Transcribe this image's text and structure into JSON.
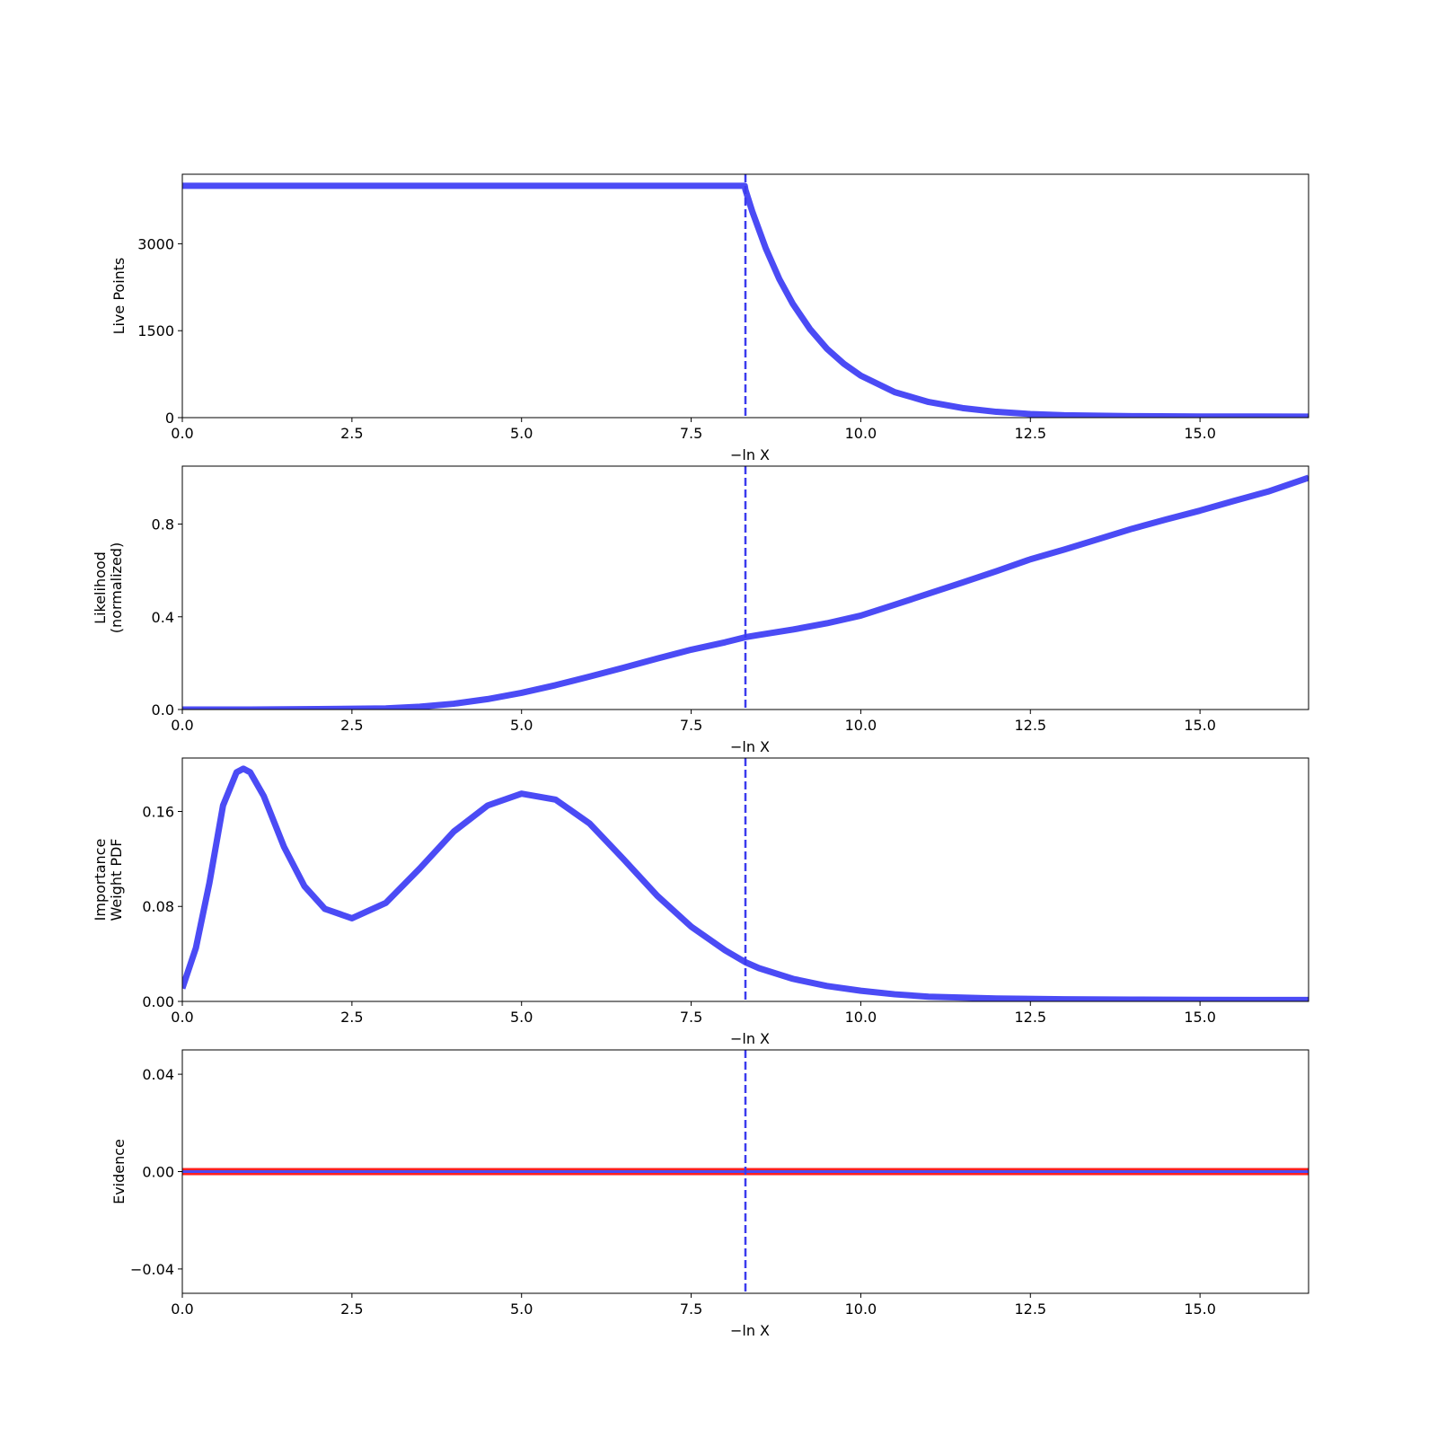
{
  "chart_data": [
    {
      "type": "line",
      "xlabel": "−ln X",
      "ylabel": [
        "Live Points"
      ],
      "xlim": [
        0,
        16.6
      ],
      "ylim": [
        0,
        4200
      ],
      "xticks": [
        0.0,
        2.5,
        5.0,
        7.5,
        10.0,
        12.5,
        15.0
      ],
      "xtick_labels": [
        "0.0",
        "2.5",
        "5.0",
        "7.5",
        "10.0",
        "12.5",
        "15.0"
      ],
      "yticks": [
        0,
        1500,
        3000
      ],
      "ytick_labels": [
        "0",
        "1500",
        "3000"
      ],
      "vline_x": 8.3,
      "grid": false,
      "series": [
        {
          "color": "#4b4bf5",
          "x": [
            0,
            8.29,
            8.3,
            8.4,
            8.6,
            8.8,
            9.0,
            9.25,
            9.5,
            9.75,
            10.0,
            10.5,
            11.0,
            11.5,
            12.0,
            12.5,
            13.0,
            14.0,
            15.0,
            16.6
          ],
          "y": [
            4000,
            4000,
            3930,
            3560,
            2920,
            2390,
            1960,
            1530,
            1190,
            930,
            725,
            440,
            270,
            165,
            100,
            62,
            40,
            25,
            20,
            18
          ]
        }
      ]
    },
    {
      "type": "line",
      "xlabel": "−ln X",
      "ylabel": [
        "Likelihood",
        "(normalized)"
      ],
      "xlim": [
        0,
        16.6
      ],
      "ylim": [
        0,
        1.05
      ],
      "xticks": [
        0.0,
        2.5,
        5.0,
        7.5,
        10.0,
        12.5,
        15.0
      ],
      "xtick_labels": [
        "0.0",
        "2.5",
        "5.0",
        "7.5",
        "10.0",
        "12.5",
        "15.0"
      ],
      "yticks": [
        0.0,
        0.4,
        0.8
      ],
      "ytick_labels": [
        "0.0",
        "0.4",
        "0.8"
      ],
      "vline_x": 8.3,
      "grid": false,
      "series": [
        {
          "color": "#4b4bf5",
          "x": [
            0,
            1.0,
            2.0,
            3.0,
            3.5,
            4.0,
            4.5,
            5.0,
            5.5,
            6.0,
            6.5,
            7.0,
            7.5,
            8.0,
            8.3,
            8.5,
            9.0,
            9.5,
            10.0,
            10.5,
            11.0,
            11.5,
            12.0,
            12.5,
            13.0,
            13.5,
            14.0,
            14.5,
            15.0,
            15.5,
            16.0,
            16.6
          ],
          "y": [
            0.0,
            0.0,
            0.002,
            0.005,
            0.012,
            0.025,
            0.045,
            0.072,
            0.105,
            0.142,
            0.18,
            0.22,
            0.258,
            0.29,
            0.312,
            0.322,
            0.345,
            0.372,
            0.405,
            0.452,
            0.5,
            0.548,
            0.597,
            0.648,
            0.69,
            0.735,
            0.78,
            0.82,
            0.858,
            0.9,
            0.94,
            1.0
          ]
        }
      ]
    },
    {
      "type": "line",
      "xlabel": "−ln X",
      "ylabel": [
        "Importance",
        "Weight PDF"
      ],
      "xlim": [
        0,
        16.6
      ],
      "ylim": [
        0,
        0.205
      ],
      "xticks": [
        0.0,
        2.5,
        5.0,
        7.5,
        10.0,
        12.5,
        15.0
      ],
      "xtick_labels": [
        "0.0",
        "2.5",
        "5.0",
        "7.5",
        "10.0",
        "12.5",
        "15.0"
      ],
      "yticks": [
        0.0,
        0.08,
        0.16
      ],
      "ytick_labels": [
        "0.00",
        "0.08",
        "0.16"
      ],
      "vline_x": 8.3,
      "grid": false,
      "series": [
        {
          "color": "#4b4bf5",
          "x": [
            0,
            0.2,
            0.4,
            0.6,
            0.8,
            0.9,
            1.0,
            1.2,
            1.5,
            1.8,
            2.1,
            2.5,
            3.0,
            3.5,
            4.0,
            4.5,
            5.0,
            5.5,
            6.0,
            6.5,
            7.0,
            7.5,
            8.0,
            8.3,
            8.5,
            9.0,
            9.5,
            10.0,
            10.5,
            11.0,
            12.0,
            13.0,
            14.0,
            15.0,
            16.6
          ],
          "y": [
            0.011,
            0.045,
            0.1,
            0.165,
            0.193,
            0.196,
            0.193,
            0.173,
            0.13,
            0.097,
            0.078,
            0.07,
            0.083,
            0.112,
            0.143,
            0.165,
            0.175,
            0.17,
            0.15,
            0.12,
            0.089,
            0.063,
            0.043,
            0.033,
            0.028,
            0.019,
            0.013,
            0.009,
            0.006,
            0.004,
            0.0025,
            0.0018,
            0.0015,
            0.0013,
            0.0012
          ]
        }
      ]
    },
    {
      "type": "line",
      "xlabel": "−ln X",
      "ylabel": [
        "Evidence"
      ],
      "xlim": [
        0,
        16.6
      ],
      "ylim": [
        -0.05,
        0.05
      ],
      "xticks": [
        0.0,
        2.5,
        5.0,
        7.5,
        10.0,
        12.5,
        15.0
      ],
      "xtick_labels": [
        "0.0",
        "2.5",
        "5.0",
        "7.5",
        "10.0",
        "12.5",
        "15.0"
      ],
      "yticks": [
        -0.04,
        0.0,
        0.04
      ],
      "ytick_labels": [
        "−0.04",
        "0.00",
        "0.04"
      ],
      "vline_x": 8.3,
      "grid": false,
      "series": [
        {
          "color": "#ff2020",
          "x": [
            0,
            16.6
          ],
          "y": [
            0,
            0
          ]
        },
        {
          "color": "#4b4bf5",
          "x": [
            0,
            16.6
          ],
          "y": [
            0,
            0
          ]
        }
      ]
    }
  ]
}
